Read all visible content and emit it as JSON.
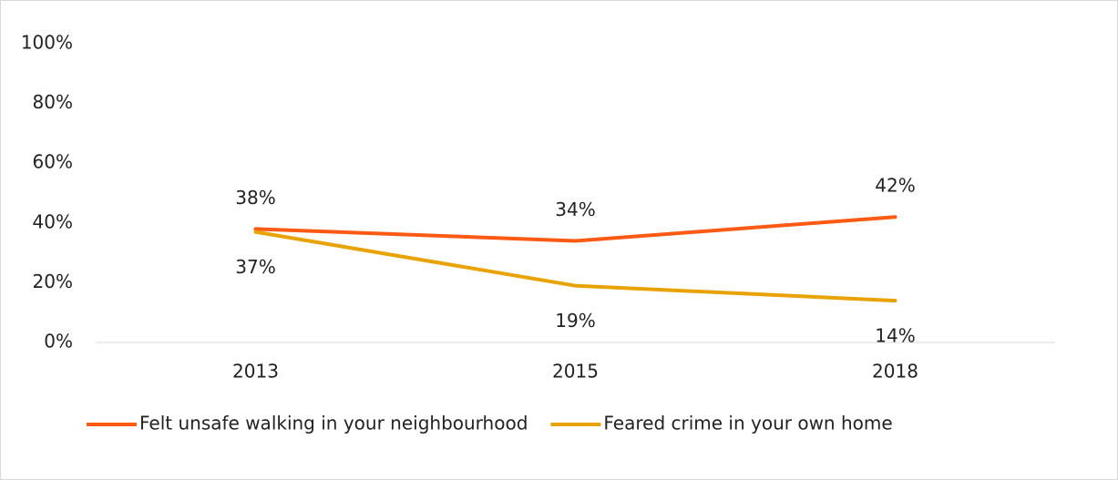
{
  "chart_data": {
    "type": "line",
    "categories": [
      "2013",
      "2015",
      "2018"
    ],
    "series": [
      {
        "name": "Felt unsafe walking in your neighbourhood",
        "color": "#ff5a14",
        "values": [
          38,
          34,
          42
        ],
        "value_labels": [
          "38%",
          "34%",
          "42%"
        ]
      },
      {
        "name": "Feared crime in your own home",
        "color": "#e8a202",
        "values": [
          37,
          19,
          14
        ],
        "value_labels": [
          "37%",
          "19%",
          "14%"
        ]
      }
    ],
    "ylim": [
      0,
      100
    ],
    "yticks": [
      {
        "value": 0,
        "label": "0%"
      },
      {
        "value": 20,
        "label": "20%"
      },
      {
        "value": 40,
        "label": "40%"
      },
      {
        "value": 60,
        "label": "60%"
      },
      {
        "value": 80,
        "label": "80%"
      },
      {
        "value": 100,
        "label": "100%"
      }
    ],
    "grid": false,
    "legend": "bottom"
  }
}
